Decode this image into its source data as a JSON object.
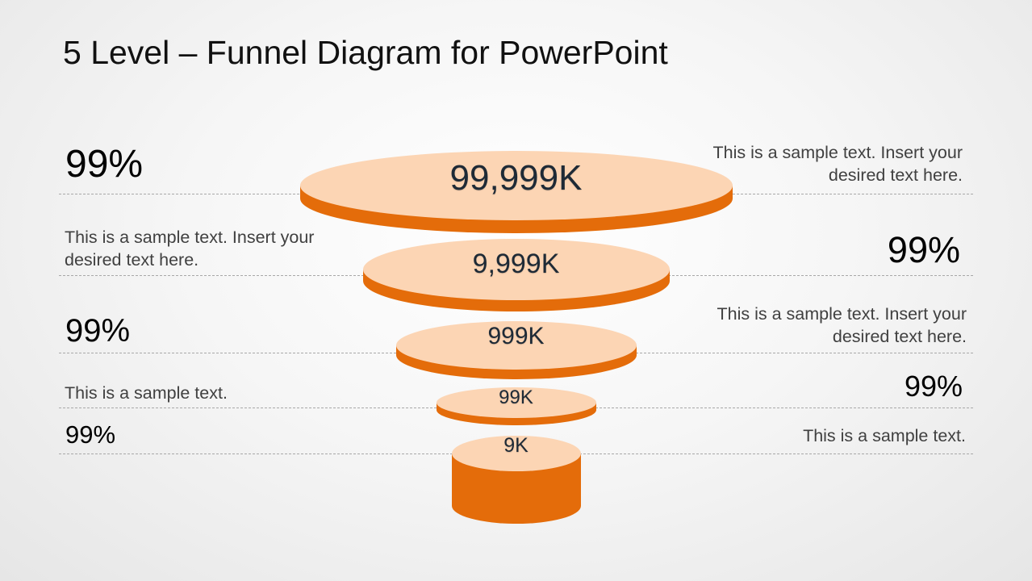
{
  "title": "5 Level – Funnel Diagram for PowerPoint",
  "colors": {
    "disc_top": "#fcd5b4",
    "disc_side": "#e46c0a"
  },
  "levels": [
    {
      "value": "99,999K",
      "left_text": "99%",
      "right_text": "This is a sample text. Insert your desired text here."
    },
    {
      "value": "9,999K",
      "left_text": "This is a sample text. Insert your desired text here.",
      "right_text": "99%"
    },
    {
      "value": "999K",
      "left_text": "99%",
      "right_text": "This is a sample text. Insert your desired text here."
    },
    {
      "value": "99K",
      "left_text": "This is a sample text.",
      "right_text": "99%"
    },
    {
      "value": "9K",
      "left_text": "99%",
      "right_text": "This is a sample text."
    }
  ]
}
